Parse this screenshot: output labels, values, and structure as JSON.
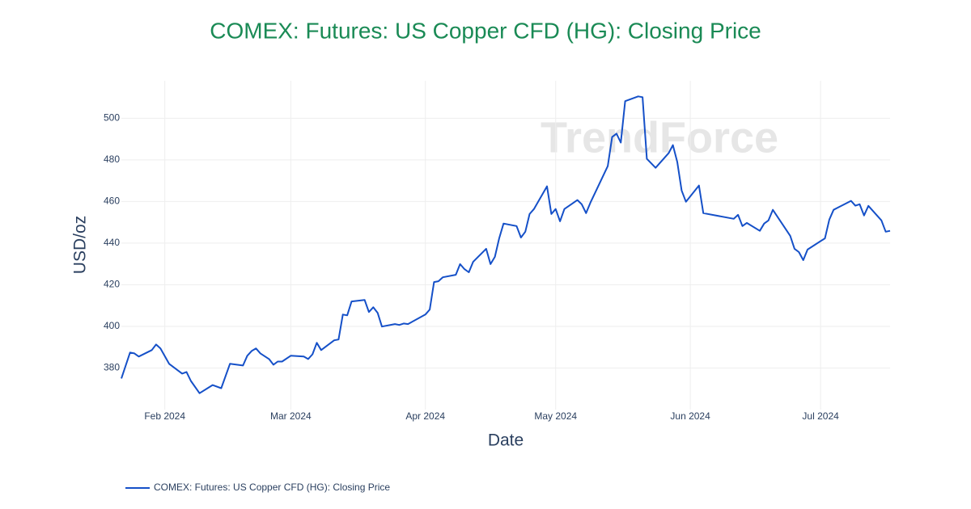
{
  "chart_data": {
    "type": "line",
    "title": "COMEX: Futures: US Copper CFD (HG): Closing Price",
    "x_label": "Date",
    "y_label": "USD/oz",
    "watermark": "TrendForce",
    "x": [
      22,
      24,
      25,
      26,
      29,
      30,
      31,
      33,
      36,
      37,
      38,
      40,
      43,
      45,
      47,
      50,
      51,
      52,
      53,
      54,
      56,
      57,
      58,
      59,
      61,
      64,
      65,
      66,
      67,
      68,
      71,
      72,
      73,
      74,
      75,
      78,
      79,
      80,
      81,
      82,
      85,
      86,
      87,
      88,
      92,
      93,
      94,
      95,
      96,
      99,
      100,
      101,
      102,
      103,
      106,
      107,
      108,
      109,
      110,
      113,
      114,
      115,
      116,
      117,
      120,
      121,
      122,
      123,
      124,
      127,
      128,
      129,
      130,
      131,
      134,
      135,
      136,
      137,
      138,
      141,
      142,
      143,
      145,
      148,
      149,
      150,
      151,
      152,
      155,
      156,
      163,
      164,
      165,
      166,
      169,
      170,
      171,
      172,
      176,
      177,
      178,
      179,
      180,
      184,
      185,
      186,
      187,
      190,
      191,
      192,
      193,
      194,
      197,
      198,
      199
    ],
    "series": [
      {
        "name": "COMEX: Futures: US Copper CFD (HG): Closing Price",
        "color": "#1550c8",
        "values": [
          375.0,
          387.4,
          387.0,
          385.5,
          388.6,
          391.3,
          389.4,
          382.0,
          377.3,
          378.1,
          373.8,
          367.9,
          371.8,
          370.3,
          382.0,
          381.2,
          385.9,
          388.2,
          389.4,
          387.0,
          384.3,
          381.6,
          383.1,
          383.1,
          385.9,
          385.5,
          384.3,
          386.6,
          392.1,
          388.6,
          393.3,
          393.7,
          405.7,
          405.3,
          412.0,
          412.7,
          406.9,
          409.2,
          406.5,
          399.9,
          401.1,
          400.7,
          401.4,
          401.1,
          405.7,
          408.1,
          421.3,
          421.7,
          423.6,
          424.8,
          429.9,
          427.5,
          426.0,
          431.0,
          437.3,
          429.9,
          433.4,
          442.3,
          449.4,
          448.2,
          442.7,
          445.5,
          454.0,
          456.4,
          467.3,
          454.0,
          456.4,
          450.5,
          456.4,
          460.7,
          458.7,
          454.4,
          459.5,
          463.8,
          477.0,
          491.0,
          492.6,
          488.3,
          508.2,
          510.5,
          510.1,
          480.5,
          476.2,
          483.2,
          487.1,
          479.0,
          465.3,
          459.9,
          467.7,
          454.4,
          451.7,
          453.6,
          448.2,
          449.7,
          445.9,
          449.4,
          450.9,
          456.0,
          443.5,
          437.3,
          435.7,
          431.8,
          436.9,
          442.3,
          451.3,
          456.0,
          457.1,
          460.3,
          458.0,
          458.7,
          453.3,
          457.9,
          450.9,
          445.5,
          445.9
        ]
      }
    ],
    "xlim": [
      22,
      199
    ],
    "xticks": [
      {
        "value": 32,
        "label": "Feb 2024"
      },
      {
        "value": 61,
        "label": "Mar 2024"
      },
      {
        "value": 92,
        "label": "Apr 2024"
      },
      {
        "value": 122,
        "label": "May 2024"
      },
      {
        "value": 153,
        "label": "Jun 2024"
      },
      {
        "value": 183,
        "label": "Jul 2024"
      }
    ],
    "ylim": [
      360,
      518
    ],
    "yticks": [
      380,
      400,
      420,
      440,
      460,
      480,
      500
    ],
    "grid": true,
    "legend": "bottom-left"
  }
}
